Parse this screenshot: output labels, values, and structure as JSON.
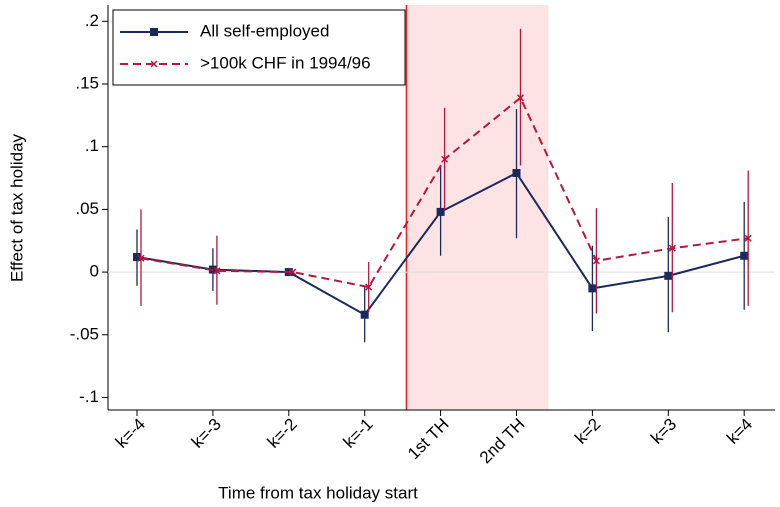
{
  "chart_data": {
    "type": "line",
    "xlabel": "Time from tax holiday start",
    "ylabel": "Effect of tax holiday",
    "categories": [
      "k=-4",
      "k=-3",
      "k=-2",
      "k=-1",
      "1st TH",
      "2nd TH",
      "k=2",
      "k=3",
      "k=4"
    ],
    "ylim": [
      -0.11,
      0.213
    ],
    "yticks": [
      {
        "value": -0.1,
        "label": "-.1"
      },
      {
        "value": -0.05,
        "label": "-.05"
      },
      0,
      {
        "value": 0.05,
        "label": ".05"
      },
      {
        "value": 0.1,
        "label": ".1"
      },
      {
        "value": 0.15,
        "label": ".15"
      },
      {
        "value": 0.2,
        "label": ".2"
      }
    ],
    "series": [
      {
        "name": "All self-employed",
        "color": "#1b2a5c",
        "dashed": false,
        "marker": "square",
        "values": [
          0.012,
          0.002,
          0.0,
          -0.034,
          0.048,
          0.079,
          -0.013,
          -0.003,
          0.013
        ],
        "lower": [
          -0.011,
          -0.015,
          0.0,
          -0.056,
          0.013,
          0.027,
          -0.047,
          -0.048,
          -0.03
        ],
        "upper": [
          0.034,
          0.019,
          0.0,
          -0.012,
          0.085,
          0.13,
          0.021,
          0.044,
          0.056
        ]
      },
      {
        "name": ">100k CHF in 1994/96",
        "color": "#b5173f",
        "dashed": true,
        "marker": "x",
        "values": [
          0.011,
          0.001,
          0.0,
          -0.012,
          0.09,
          0.139,
          0.009,
          0.019,
          0.027
        ],
        "lower": [
          -0.027,
          -0.026,
          0.0,
          -0.032,
          0.049,
          0.085,
          -0.033,
          -0.032,
          -0.027
        ],
        "upper": [
          0.05,
          0.029,
          0.0,
          0.008,
          0.131,
          0.194,
          0.051,
          0.071,
          0.081
        ]
      }
    ]
  }
}
